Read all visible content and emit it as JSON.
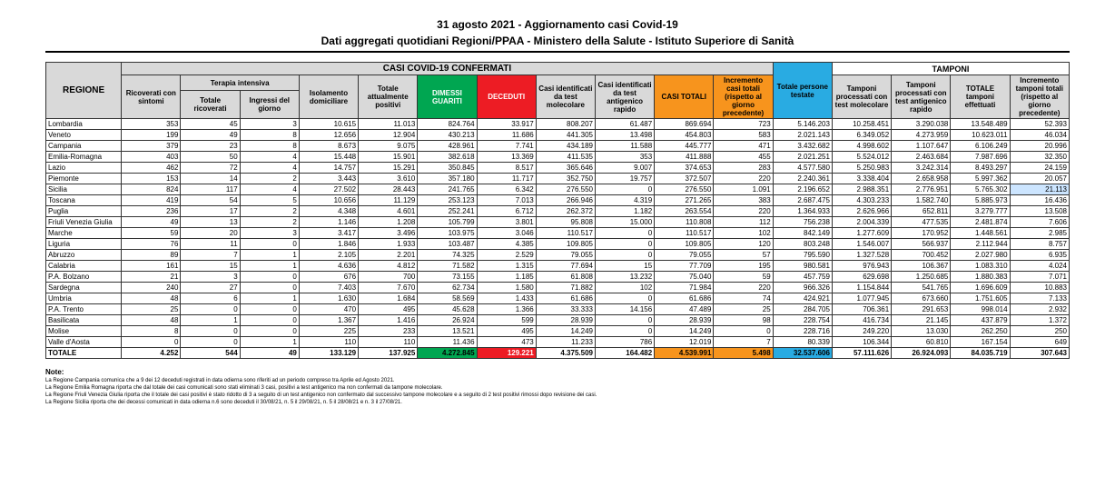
{
  "title1": "31 agosto 2021 - Aggiornamento casi Covid-19",
  "title2": "Dati aggregati quotidiani Regioni/PPAA - Ministero della Salute - Istituto Superiore di Sanità",
  "group_headers": {
    "regione": "REGIONE",
    "casi": "CASI COVID-19 CONFERMATI",
    "tamponi": "TAMPONI",
    "terapia": "Terapia intensiva"
  },
  "columns": [
    "Ricoverati con sintomi",
    "Totale ricoverati",
    "Ingressi del giorno",
    "Isolamento domiciliare",
    "Totale attualmente positivi",
    "DIMESSI GUARITI",
    "DECEDUTI",
    "Casi identificati da test molecolare",
    "Casi identificati da test antigenico rapido",
    "CASI TOTALI",
    "Incremento casi totali (rispetto al giorno precedente)",
    "Totale persone testate",
    "Tamponi processati con test molecolare",
    "Tamponi processati con test antigenico rapido",
    "TOTALE tamponi effettuati",
    "Incremento tamponi totali (rispetto al giorno precedente)"
  ],
  "rows": [
    {
      "r": "Lombardia",
      "c": [
        "353",
        "45",
        "3",
        "10.615",
        "11.013",
        "824.764",
        "33.917",
        "808.207",
        "61.487",
        "869.694",
        "723",
        "5.146.203",
        "10.258.451",
        "3.290.038",
        "13.548.489",
        "52.393"
      ]
    },
    {
      "r": "Veneto",
      "c": [
        "199",
        "49",
        "8",
        "12.656",
        "12.904",
        "430.213",
        "11.686",
        "441.305",
        "13.498",
        "454.803",
        "583",
        "2.021.143",
        "6.349.052",
        "4.273.959",
        "10.623.011",
        "46.034"
      ]
    },
    {
      "r": "Campania",
      "c": [
        "379",
        "23",
        "8",
        "8.673",
        "9.075",
        "428.961",
        "7.741",
        "434.189",
        "11.588",
        "445.777",
        "471",
        "3.432.682",
        "4.998.602",
        "1.107.647",
        "6.106.249",
        "20.996"
      ]
    },
    {
      "r": "Emilia-Romagna",
      "c": [
        "403",
        "50",
        "4",
        "15.448",
        "15.901",
        "382.618",
        "13.369",
        "411.535",
        "353",
        "411.888",
        "455",
        "2.021.251",
        "5.524.012",
        "2.463.684",
        "7.987.696",
        "32.350"
      ]
    },
    {
      "r": "Lazio",
      "c": [
        "462",
        "72",
        "4",
        "14.757",
        "15.291",
        "350.845",
        "8.517",
        "365.646",
        "9.007",
        "374.653",
        "283",
        "4.577.580",
        "5.250.983",
        "3.242.314",
        "8.493.297",
        "24.159"
      ]
    },
    {
      "r": "Piemonte",
      "c": [
        "153",
        "14",
        "2",
        "3.443",
        "3.610",
        "357.180",
        "11.717",
        "352.750",
        "19.757",
        "372.507",
        "220",
        "2.240.361",
        "3.338.404",
        "2.658.958",
        "5.997.362",
        "20.057"
      ]
    },
    {
      "r": "Sicilia",
      "c": [
        "824",
        "117",
        "4",
        "27.502",
        "28.443",
        "241.765",
        "6.342",
        "276.550",
        "0",
        "276.550",
        "1.091",
        "2.196.652",
        "2.988.351",
        "2.776.951",
        "5.765.302",
        "21.113"
      ],
      "hl": 15
    },
    {
      "r": "Toscana",
      "c": [
        "419",
        "54",
        "5",
        "10.656",
        "11.129",
        "253.123",
        "7.013",
        "266.946",
        "4.319",
        "271.265",
        "383",
        "2.687.475",
        "4.303.233",
        "1.582.740",
        "5.885.973",
        "16.436"
      ]
    },
    {
      "r": "Puglia",
      "c": [
        "236",
        "17",
        "2",
        "4.348",
        "4.601",
        "252.241",
        "6.712",
        "262.372",
        "1.182",
        "263.554",
        "220",
        "1.364.933",
        "2.626.966",
        "652.811",
        "3.279.777",
        "13.508"
      ]
    },
    {
      "r": "Friuli Venezia Giulia",
      "c": [
        "49",
        "13",
        "2",
        "1.146",
        "1.208",
        "105.799",
        "3.801",
        "95.808",
        "15.000",
        "110.808",
        "112",
        "756.238",
        "2.004.339",
        "477.535",
        "2.481.874",
        "7.606"
      ]
    },
    {
      "r": "Marche",
      "c": [
        "59",
        "20",
        "3",
        "3.417",
        "3.496",
        "103.975",
        "3.046",
        "110.517",
        "0",
        "110.517",
        "102",
        "842.149",
        "1.277.609",
        "170.952",
        "1.448.561",
        "2.985"
      ]
    },
    {
      "r": "Liguria",
      "c": [
        "76",
        "11",
        "0",
        "1.846",
        "1.933",
        "103.487",
        "4.385",
        "109.805",
        "0",
        "109.805",
        "120",
        "803.248",
        "1.546.007",
        "566.937",
        "2.112.944",
        "8.757"
      ]
    },
    {
      "r": "Abruzzo",
      "c": [
        "89",
        "7",
        "1",
        "2.105",
        "2.201",
        "74.325",
        "2.529",
        "79.055",
        "0",
        "79.055",
        "57",
        "795.590",
        "1.327.528",
        "700.452",
        "2.027.980",
        "6.935"
      ]
    },
    {
      "r": "Calabria",
      "c": [
        "161",
        "15",
        "1",
        "4.636",
        "4.812",
        "71.582",
        "1.315",
        "77.694",
        "15",
        "77.709",
        "195",
        "980.581",
        "976.943",
        "106.367",
        "1.083.310",
        "4.024"
      ]
    },
    {
      "r": "P.A. Bolzano",
      "c": [
        "21",
        "3",
        "0",
        "676",
        "700",
        "73.155",
        "1.185",
        "61.808",
        "13.232",
        "75.040",
        "59",
        "457.759",
        "629.698",
        "1.250.685",
        "1.880.383",
        "7.071"
      ]
    },
    {
      "r": "Sardegna",
      "c": [
        "240",
        "27",
        "0",
        "7.403",
        "7.670",
        "62.734",
        "1.580",
        "71.882",
        "102",
        "71.984",
        "220",
        "966.326",
        "1.154.844",
        "541.765",
        "1.696.609",
        "10.883"
      ]
    },
    {
      "r": "Umbria",
      "c": [
        "48",
        "6",
        "1",
        "1.630",
        "1.684",
        "58.569",
        "1.433",
        "61.686",
        "0",
        "61.686",
        "74",
        "424.921",
        "1.077.945",
        "673.660",
        "1.751.605",
        "7.133"
      ]
    },
    {
      "r": "P.A. Trento",
      "c": [
        "25",
        "0",
        "0",
        "470",
        "495",
        "45.628",
        "1.366",
        "33.333",
        "14.156",
        "47.489",
        "25",
        "284.705",
        "706.361",
        "291.653",
        "998.014",
        "2.932"
      ]
    },
    {
      "r": "Basilicata",
      "c": [
        "48",
        "1",
        "0",
        "1.367",
        "1.416",
        "26.924",
        "599",
        "28.939",
        "0",
        "28.939",
        "98",
        "228.754",
        "416.734",
        "21.145",
        "437.879",
        "1.372"
      ]
    },
    {
      "r": "Molise",
      "c": [
        "8",
        "0",
        "0",
        "225",
        "233",
        "13.521",
        "495",
        "14.249",
        "0",
        "14.249",
        "0",
        "228.716",
        "249.220",
        "13.030",
        "262.250",
        "250"
      ]
    },
    {
      "r": "Valle d'Aosta",
      "c": [
        "0",
        "0",
        "1",
        "110",
        "110",
        "11.436",
        "473",
        "11.233",
        "786",
        "12.019",
        "7",
        "80.339",
        "106.344",
        "60.810",
        "167.154",
        "649"
      ]
    }
  ],
  "total": {
    "r": "TOTALE",
    "c": [
      "4.252",
      "544",
      "49",
      "133.129",
      "137.925",
      "4.272.845",
      "129.221",
      "4.375.509",
      "164.482",
      "4.539.991",
      "5.498",
      "32.537.606",
      "57.111.626",
      "26.924.093",
      "84.035.719",
      "307.643"
    ]
  },
  "notes_label": "Note:",
  "notes": [
    "La Regione Campania comunica che a 9 dei 12 deceduti registrati in data odierna sono riferiti ad un periodo compreso tra Aprile ed Agosto 2021.",
    "La Regione Emilia Romagna riporta che dal totale dei casi comunicati sono stati eliminati 3 casi, positivi a test antigenico ma non confermati da tampone molecolare.",
    "La Regione Friuli Venezia Giulia riporta che il totale dei casi positivi è stato ridotto di 3 a seguito di un test antigenico non confermato dal successivo tampone molecolare e a seguito di 2 test positivi rimossi dopo revisione dei casi.",
    "La Regione Sicilia riporta che dei decessi comunicati in data odierna n.6 sono deceduti il 30/08/21, n. 5 il 29/08/21, n. 5 il 28/08/21 e n. 3 il 27/08/21."
  ]
}
